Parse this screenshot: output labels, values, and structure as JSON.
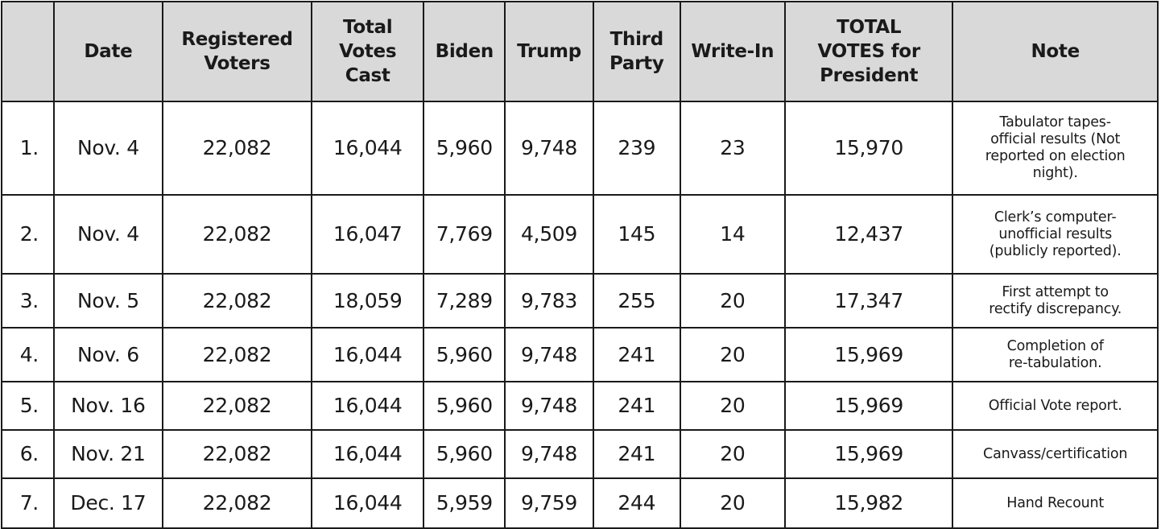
{
  "table": {
    "headers": {
      "num": "",
      "date": "Date",
      "registered": [
        "Registered",
        "Voters"
      ],
      "total_cast": [
        "Total",
        "Votes",
        "Cast"
      ],
      "biden": "Biden",
      "trump": "Trump",
      "third_party": [
        "Third",
        "Party"
      ],
      "write_in": "Write-In",
      "total_president": [
        "TOTAL",
        "VOTES for",
        "President"
      ],
      "note": "Note"
    },
    "rows": [
      {
        "num": "1.",
        "date": "Nov. 4",
        "registered": "22,082",
        "total_cast": "16,044",
        "biden": "5,960",
        "trump": "9,748",
        "third_party": "239",
        "write_in": "23",
        "total_president": "15,970",
        "note": [
          "Tabulator tapes-",
          "official results (Not",
          "reported on election",
          "night)."
        ]
      },
      {
        "num": "2.",
        "date": "Nov. 4",
        "registered": "22,082",
        "total_cast": "16,047",
        "biden": "7,769",
        "trump": "4,509",
        "third_party": "145",
        "write_in": "14",
        "total_president": "12,437",
        "note": [
          "Clerk’s computer-",
          "unofficial results",
          "(publicly reported)."
        ]
      },
      {
        "num": "3.",
        "date": "Nov. 5",
        "registered": "22,082",
        "total_cast": "18,059",
        "biden": "7,289",
        "trump": "9,783",
        "third_party": "255",
        "write_in": "20",
        "total_president": "17,347",
        "note": [
          "First attempt to",
          "rectify discrepancy."
        ]
      },
      {
        "num": "4.",
        "date": "Nov. 6",
        "registered": "22,082",
        "total_cast": "16,044",
        "biden": "5,960",
        "trump": "9,748",
        "third_party": "241",
        "write_in": "20",
        "total_president": "15,969",
        "note": [
          "Completion of",
          "re-tabulation."
        ]
      },
      {
        "num": "5.",
        "date": "Nov. 16",
        "registered": "22,082",
        "total_cast": "16,044",
        "biden": "5,960",
        "trump": "9,748",
        "third_party": "241",
        "write_in": "20",
        "total_president": "15,969",
        "note": [
          "Official Vote report."
        ]
      },
      {
        "num": "6.",
        "date": "Nov. 21",
        "registered": "22,082",
        "total_cast": "16,044",
        "biden": "5,960",
        "trump": "9,748",
        "third_party": "241",
        "write_in": "20",
        "total_president": "15,969",
        "note": [
          "Canvass/certification"
        ]
      },
      {
        "num": "7.",
        "date": "Dec. 17",
        "registered": "22,082",
        "total_cast": "16,044",
        "biden": "5,959",
        "trump": "9,759",
        "third_party": "244",
        "write_in": "20",
        "total_president": "15,982",
        "note": [
          "Hand Recount"
        ]
      }
    ],
    "colors": {
      "header_background": "#d9d9d9",
      "border": "#1a1a1a",
      "text": "#1a1a1a"
    }
  }
}
